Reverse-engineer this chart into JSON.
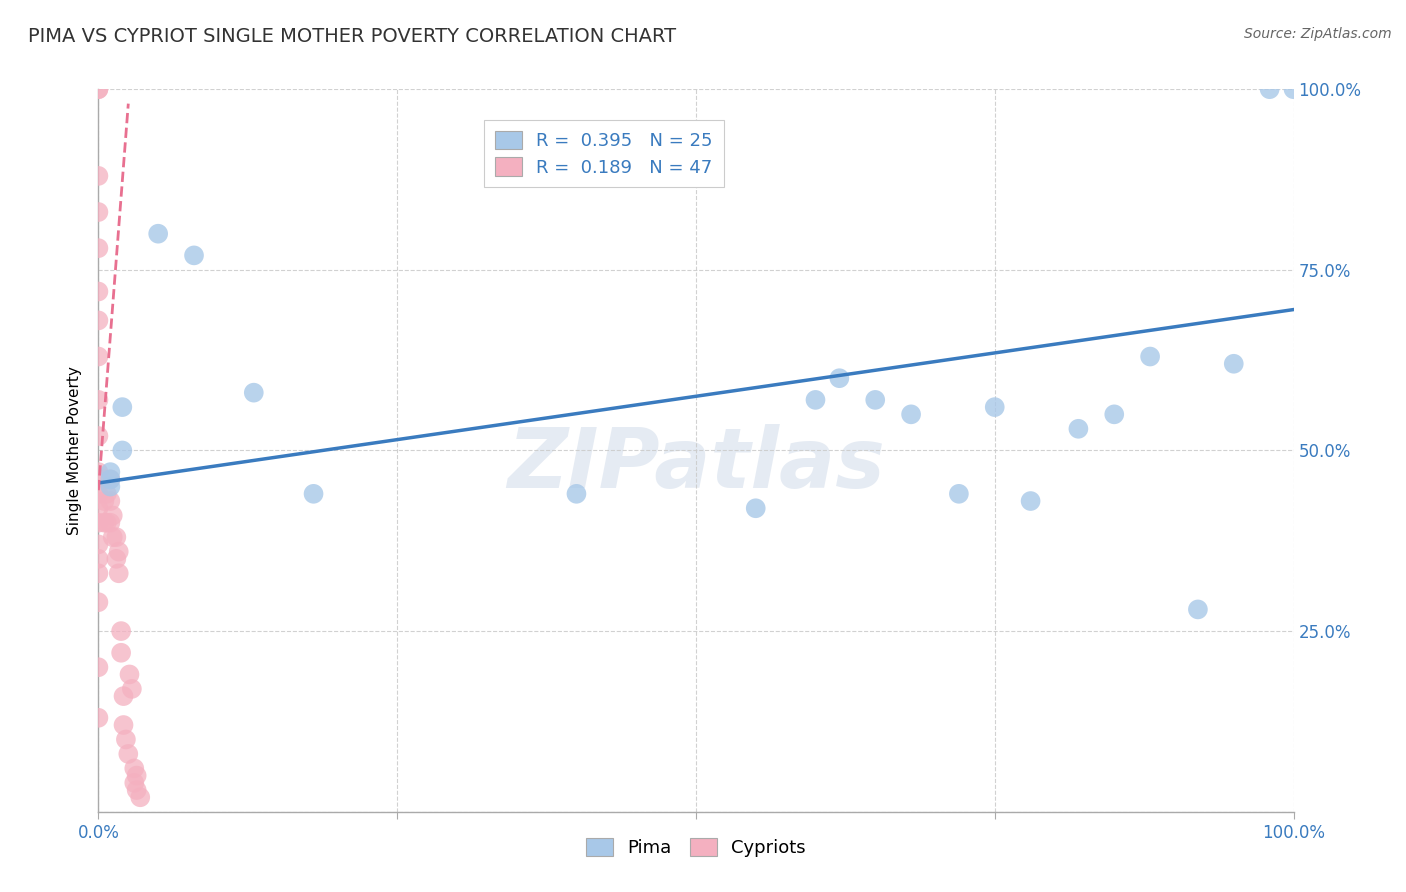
{
  "title": "PIMA VS CYPRIOT SINGLE MOTHER POVERTY CORRELATION CHART",
  "source": "Source: ZipAtlas.com",
  "ylabel_label": "Single Mother Poverty",
  "watermark": "ZIPatlas",
  "blue_R": 0.395,
  "blue_N": 25,
  "pink_R": 0.189,
  "pink_N": 47,
  "blue_color": "#a8c8e8",
  "pink_color": "#f4b0c0",
  "blue_line_color": "#3a7bbf",
  "pink_line_color": "#e87090",
  "blue_points_x": [
    0.01,
    0.01,
    0.01,
    0.02,
    0.02,
    0.05,
    0.08,
    0.13,
    0.18,
    0.4,
    0.55,
    0.6,
    0.62,
    0.65,
    0.68,
    0.72,
    0.75,
    0.78,
    0.82,
    0.85,
    0.88,
    0.92,
    0.95,
    0.98,
    1.0
  ],
  "blue_points_y": [
    0.46,
    0.47,
    0.45,
    0.5,
    0.56,
    0.8,
    0.77,
    0.58,
    0.44,
    0.44,
    0.42,
    0.57,
    0.6,
    0.57,
    0.55,
    0.44,
    0.56,
    0.43,
    0.53,
    0.55,
    0.63,
    0.28,
    0.62,
    1.0,
    1.0
  ],
  "pink_points_x": [
    0.0,
    0.0,
    0.0,
    0.0,
    0.0,
    0.0,
    0.0,
    0.0,
    0.0,
    0.0,
    0.0,
    0.0,
    0.0,
    0.0,
    0.0,
    0.0,
    0.0,
    0.0,
    0.0,
    0.0,
    0.005,
    0.005,
    0.005,
    0.007,
    0.007,
    0.01,
    0.01,
    0.01,
    0.012,
    0.012,
    0.015,
    0.015,
    0.017,
    0.017,
    0.019,
    0.019,
    0.021,
    0.021,
    0.023,
    0.025,
    0.026,
    0.028,
    0.03,
    0.03,
    0.032,
    0.032,
    0.035
  ],
  "pink_points_y": [
    1.0,
    1.0,
    0.88,
    0.83,
    0.78,
    0.72,
    0.68,
    0.63,
    0.57,
    0.52,
    0.47,
    0.44,
    0.42,
    0.4,
    0.37,
    0.35,
    0.33,
    0.29,
    0.2,
    0.13,
    0.4,
    0.43,
    0.46,
    0.4,
    0.44,
    0.4,
    0.43,
    0.46,
    0.38,
    0.41,
    0.35,
    0.38,
    0.33,
    0.36,
    0.22,
    0.25,
    0.12,
    0.16,
    0.1,
    0.08,
    0.19,
    0.17,
    0.06,
    0.04,
    0.03,
    0.05,
    0.02
  ],
  "xlim": [
    0.0,
    1.0
  ],
  "ylim": [
    0.0,
    1.0
  ],
  "xticks": [
    0.0,
    0.25,
    0.5,
    0.75,
    1.0
  ],
  "yticks": [
    0.0,
    0.25,
    0.5,
    0.75,
    1.0
  ],
  "ytick_labels_right": [
    "",
    "25.0%",
    "50.0%",
    "75.0%",
    "100.0%"
  ],
  "blue_line_x": [
    0.0,
    1.0
  ],
  "blue_line_y": [
    0.455,
    0.695
  ],
  "pink_line_x": [
    0.0,
    0.025
  ],
  "pink_line_y": [
    0.445,
    0.98
  ],
  "grid_color": "#cccccc",
  "background_color": "#ffffff",
  "title_fontsize": 14,
  "axis_label_fontsize": 11,
  "tick_fontsize": 12,
  "legend_fontsize": 13
}
